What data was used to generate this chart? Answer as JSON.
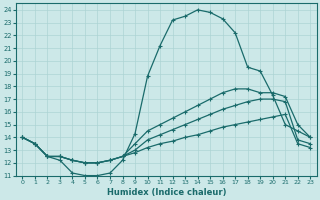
{
  "xlabel": "Humidex (Indice chaleur)",
  "xlim": [
    -0.5,
    23.5
  ],
  "ylim": [
    11,
    24.5
  ],
  "xticks": [
    0,
    1,
    2,
    3,
    4,
    5,
    6,
    7,
    8,
    9,
    10,
    11,
    12,
    13,
    14,
    15,
    16,
    17,
    18,
    19,
    20,
    21,
    22,
    23
  ],
  "yticks": [
    11,
    12,
    13,
    14,
    15,
    16,
    17,
    18,
    19,
    20,
    21,
    22,
    23,
    24
  ],
  "bg_color": "#cce8e8",
  "line_color": "#1a6b6b",
  "grid_color": "#add4d4",
  "curve_main_x": [
    0,
    1,
    2,
    3,
    4,
    5,
    6,
    7,
    8,
    9,
    10,
    11,
    12,
    13,
    14,
    15,
    16,
    17,
    18,
    19,
    20,
    21,
    22,
    23
  ],
  "curve_main_y": [
    14.0,
    13.5,
    12.5,
    12.2,
    11.2,
    11.0,
    11.0,
    11.2,
    12.2,
    14.3,
    18.8,
    21.2,
    23.2,
    23.5,
    24.0,
    23.8,
    23.3,
    22.2,
    19.5,
    19.2,
    17.3,
    15.0,
    14.5,
    14.0
  ],
  "curve_top_x": [
    0,
    1,
    2,
    3,
    4,
    5,
    6,
    7,
    8,
    9,
    10,
    11,
    12,
    13,
    14,
    15,
    16,
    17,
    18,
    19,
    20,
    21,
    22,
    23
  ],
  "curve_top_y": [
    14.0,
    13.5,
    12.5,
    12.5,
    12.2,
    12.0,
    12.0,
    12.2,
    12.5,
    13.5,
    14.5,
    15.0,
    15.5,
    16.0,
    16.5,
    17.0,
    17.5,
    17.8,
    17.8,
    17.5,
    17.5,
    17.2,
    15.0,
    14.0
  ],
  "curve_mid_x": [
    0,
    1,
    2,
    3,
    4,
    5,
    6,
    7,
    8,
    9,
    10,
    11,
    12,
    13,
    14,
    15,
    16,
    17,
    18,
    19,
    20,
    21,
    22,
    23
  ],
  "curve_mid_y": [
    14.0,
    13.5,
    12.5,
    12.5,
    12.2,
    12.0,
    12.0,
    12.2,
    12.5,
    13.0,
    13.8,
    14.2,
    14.6,
    15.0,
    15.4,
    15.8,
    16.2,
    16.5,
    16.8,
    17.0,
    17.0,
    16.8,
    13.8,
    13.5
  ],
  "curve_bot_x": [
    0,
    1,
    2,
    3,
    4,
    5,
    6,
    7,
    8,
    9,
    10,
    11,
    12,
    13,
    14,
    15,
    16,
    17,
    18,
    19,
    20,
    21,
    22,
    23
  ],
  "curve_bot_y": [
    14.0,
    13.5,
    12.5,
    12.5,
    12.2,
    12.0,
    12.0,
    12.2,
    12.5,
    12.8,
    13.2,
    13.5,
    13.7,
    14.0,
    14.2,
    14.5,
    14.8,
    15.0,
    15.2,
    15.4,
    15.6,
    15.8,
    13.5,
    13.2
  ]
}
